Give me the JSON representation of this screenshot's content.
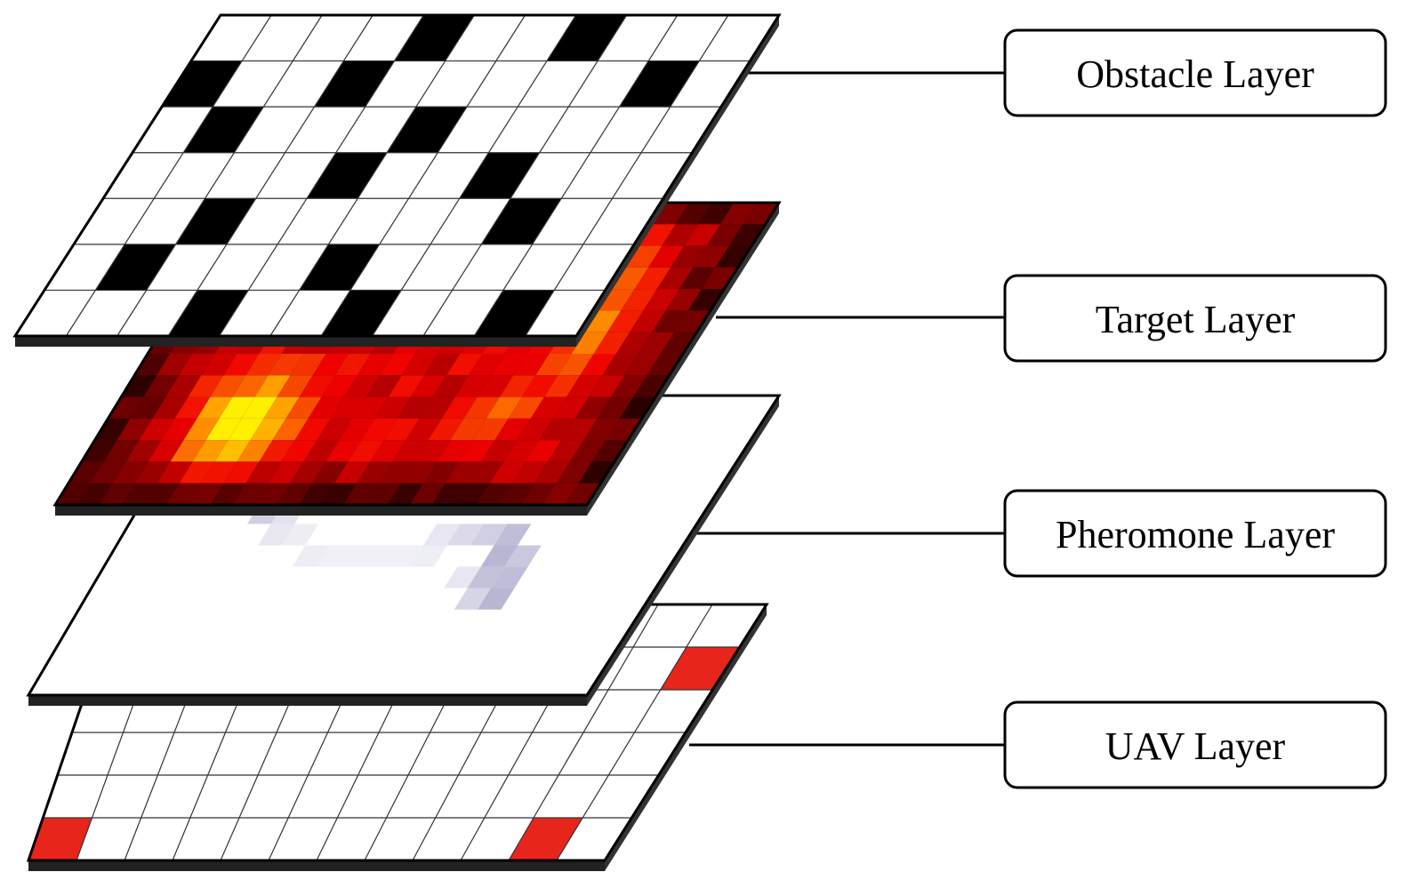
{
  "layers": [
    {
      "id": "obstacle",
      "label": "Obstacle Layer",
      "type": "binary-grid",
      "rows": 7,
      "cols": 11,
      "obstacle_cells": [
        [
          0,
          4
        ],
        [
          0,
          7
        ],
        [
          1,
          0
        ],
        [
          1,
          3
        ],
        [
          1,
          9
        ],
        [
          2,
          1
        ],
        [
          2,
          5
        ],
        [
          3,
          4
        ],
        [
          3,
          7
        ],
        [
          4,
          2
        ],
        [
          4,
          8
        ],
        [
          5,
          1
        ],
        [
          5,
          5
        ],
        [
          6,
          3
        ],
        [
          6,
          6
        ],
        [
          6,
          9
        ]
      ]
    },
    {
      "id": "target",
      "label": "Target Layer",
      "type": "heatmap",
      "rows": 14,
      "cols": 24,
      "colormap": "hot"
    },
    {
      "id": "pheromone",
      "label": "Pheromone Layer",
      "type": "trail",
      "rows": 14,
      "cols": 24,
      "color": "#8a86b8",
      "trail_cells": [
        [
          4,
          4,
          0.7
        ],
        [
          4,
          5,
          0.5
        ],
        [
          5,
          5,
          0.4
        ],
        [
          5,
          6,
          0.25
        ],
        [
          6,
          6,
          0.2
        ],
        [
          6,
          7,
          0.15
        ],
        [
          7,
          8,
          0.15
        ],
        [
          7,
          9,
          0.12
        ],
        [
          7,
          10,
          0.12
        ],
        [
          7,
          11,
          0.12
        ],
        [
          7,
          12,
          0.12
        ],
        [
          7,
          13,
          0.14
        ],
        [
          6,
          13,
          0.2
        ],
        [
          6,
          14,
          0.3
        ],
        [
          6,
          15,
          0.4
        ],
        [
          6,
          16,
          0.55
        ],
        [
          7,
          16,
          0.6
        ],
        [
          7,
          17,
          0.45
        ],
        [
          8,
          16,
          0.5
        ],
        [
          8,
          17,
          0.55
        ],
        [
          9,
          17,
          0.6
        ],
        [
          8,
          15,
          0.2
        ],
        [
          9,
          16,
          0.35
        ]
      ]
    },
    {
      "id": "uav",
      "label": "UAV Layer",
      "type": "grid",
      "rows": 6,
      "cols": 12,
      "occupied_color": "#e8251a",
      "occupied_cells": [
        [
          1,
          11
        ],
        [
          5,
          0
        ],
        [
          5,
          10
        ]
      ]
    }
  ]
}
